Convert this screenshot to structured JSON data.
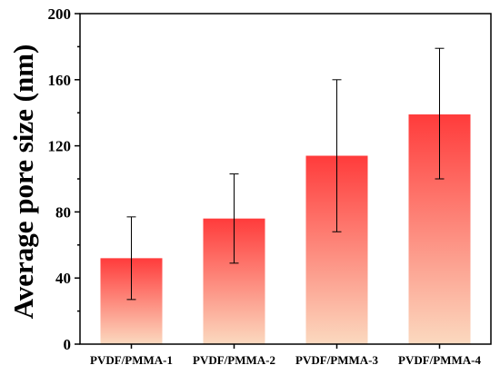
{
  "chart_data": {
    "type": "bar",
    "title": "",
    "xlabel": "",
    "ylabel": "Average pore size (nm)",
    "ylim": [
      0,
      200
    ],
    "yticks": [
      0,
      40,
      80,
      120,
      160,
      200
    ],
    "categories": [
      "PVDF/PMMA-1",
      "PVDF/PMMA-2",
      "PVDF/PMMA-3",
      "PVDF/PMMA-4"
    ],
    "values": [
      52,
      76,
      114,
      139
    ],
    "error_low": [
      27,
      49,
      68,
      100
    ],
    "error_high": [
      77,
      103,
      160,
      179
    ],
    "bar_gradient": {
      "top": "#ff3b3b",
      "bottom": "#fbd9bf"
    },
    "grid": false,
    "legend": "none"
  }
}
